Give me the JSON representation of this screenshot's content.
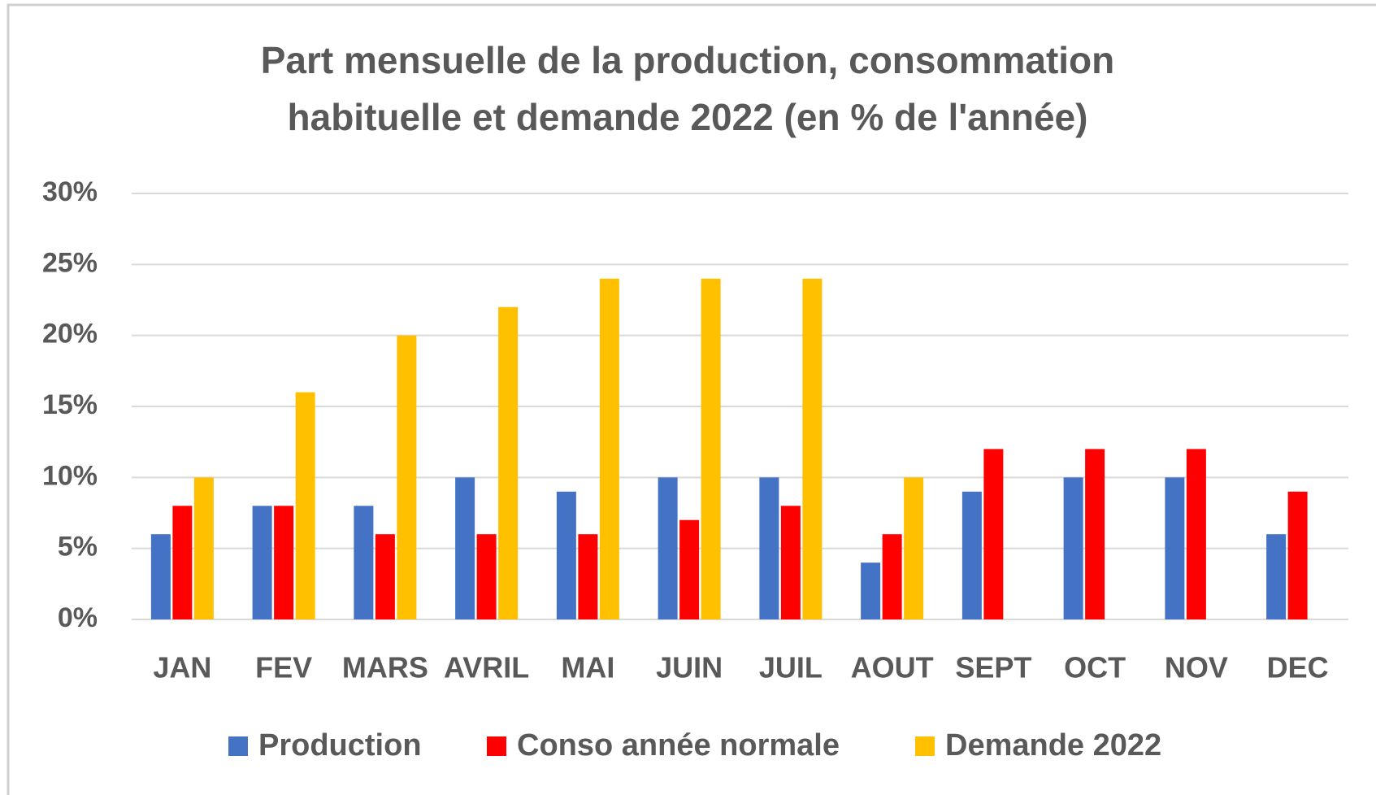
{
  "chart_data": {
    "type": "bar",
    "title": [
      "Part mensuelle de la production, consommation",
      "habituelle et demande 2022 (en % de l'année)"
    ],
    "categories": [
      "JAN",
      "FEV",
      "MARS",
      "AVRIL",
      "MAI",
      "JUIN",
      "JUIL",
      "AOUT",
      "SEPT",
      "OCT",
      "NOV",
      "DEC"
    ],
    "series": [
      {
        "name": "Production",
        "color": "#4472c4",
        "values": [
          6,
          8,
          8,
          10,
          9,
          10,
          10,
          4,
          9,
          10,
          10,
          6
        ]
      },
      {
        "name": "Conso année normale",
        "color": "#ff0000",
        "values": [
          8,
          8,
          6,
          6,
          6,
          7,
          8,
          6,
          12,
          12,
          12,
          9
        ]
      },
      {
        "name": "Demande 2022",
        "color": "#ffc000",
        "values": [
          10,
          16,
          20,
          22,
          24,
          24,
          24,
          10,
          null,
          null,
          null,
          null
        ]
      }
    ],
    "ylim": [
      0,
      30
    ],
    "yticks": [
      {
        "value": 0,
        "label": "0%"
      },
      {
        "value": 5,
        "label": "5%"
      },
      {
        "value": 10,
        "label": "10%"
      },
      {
        "value": 15,
        "label": "15%"
      },
      {
        "value": 20,
        "label": "20%"
      },
      {
        "value": 25,
        "label": "25%"
      },
      {
        "value": 30,
        "label": "30%"
      }
    ],
    "grid": true,
    "legend": "bottom"
  }
}
